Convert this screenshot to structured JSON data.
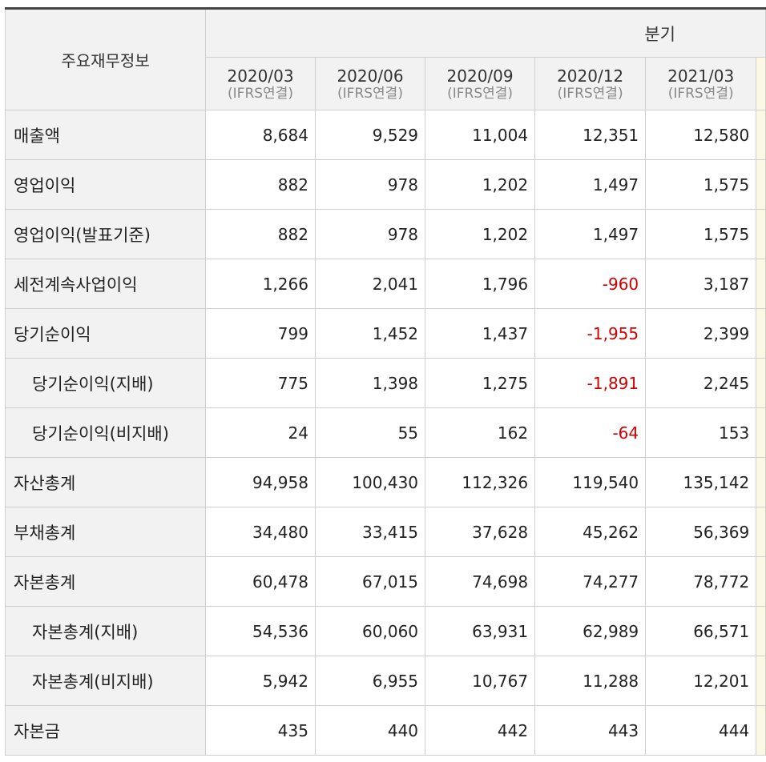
{
  "table": {
    "corner_label": "주요재무정보",
    "group_label": "분기",
    "columns": [
      {
        "period": "2020/03",
        "basis": "(IFRS연결)"
      },
      {
        "period": "2020/06",
        "basis": "(IFRS연결)"
      },
      {
        "period": "2020/09",
        "basis": "(IFRS연결)"
      },
      {
        "period": "2020/12",
        "basis": "(IFRS연결)"
      },
      {
        "period": "2021/03",
        "basis": "(IFRS연결)"
      }
    ],
    "rows": [
      {
        "label": "매출액",
        "sub": false,
        "values": [
          "8,684",
          "9,529",
          "11,004",
          "12,351",
          "12,580"
        ]
      },
      {
        "label": "영업이익",
        "sub": false,
        "values": [
          "882",
          "978",
          "1,202",
          "1,497",
          "1,575"
        ]
      },
      {
        "label": "영업이익(발표기준)",
        "sub": false,
        "values": [
          "882",
          "978",
          "1,202",
          "1,497",
          "1,575"
        ]
      },
      {
        "label": "세전계속사업이익",
        "sub": false,
        "values": [
          "1,266",
          "2,041",
          "1,796",
          "-960",
          "3,187"
        ]
      },
      {
        "label": "당기순이익",
        "sub": false,
        "values": [
          "799",
          "1,452",
          "1,437",
          "-1,955",
          "2,399"
        ]
      },
      {
        "label": "당기순이익(지배)",
        "sub": true,
        "values": [
          "775",
          "1,398",
          "1,275",
          "-1,891",
          "2,245"
        ]
      },
      {
        "label": "당기순이익(비지배)",
        "sub": true,
        "values": [
          "24",
          "55",
          "162",
          "-64",
          "153"
        ]
      },
      {
        "label": "자산총계",
        "sub": false,
        "values": [
          "94,958",
          "100,430",
          "112,326",
          "119,540",
          "135,142"
        ]
      },
      {
        "label": "부채총계",
        "sub": false,
        "values": [
          "34,480",
          "33,415",
          "37,628",
          "45,262",
          "56,369"
        ]
      },
      {
        "label": "자본총계",
        "sub": false,
        "values": [
          "60,478",
          "67,015",
          "74,698",
          "74,277",
          "78,772"
        ]
      },
      {
        "label": "자본총계(지배)",
        "sub": true,
        "values": [
          "54,536",
          "60,060",
          "63,931",
          "62,989",
          "66,571"
        ]
      },
      {
        "label": "자본총계(비지배)",
        "sub": true,
        "values": [
          "5,942",
          "6,955",
          "10,767",
          "11,288",
          "12,201"
        ]
      },
      {
        "label": "자본금",
        "sub": false,
        "values": [
          "435",
          "440",
          "442",
          "443",
          "444"
        ]
      }
    ]
  },
  "colors": {
    "negative": "#d10000",
    "header_bg": "#f2f2f2",
    "top_border": "#444444"
  }
}
